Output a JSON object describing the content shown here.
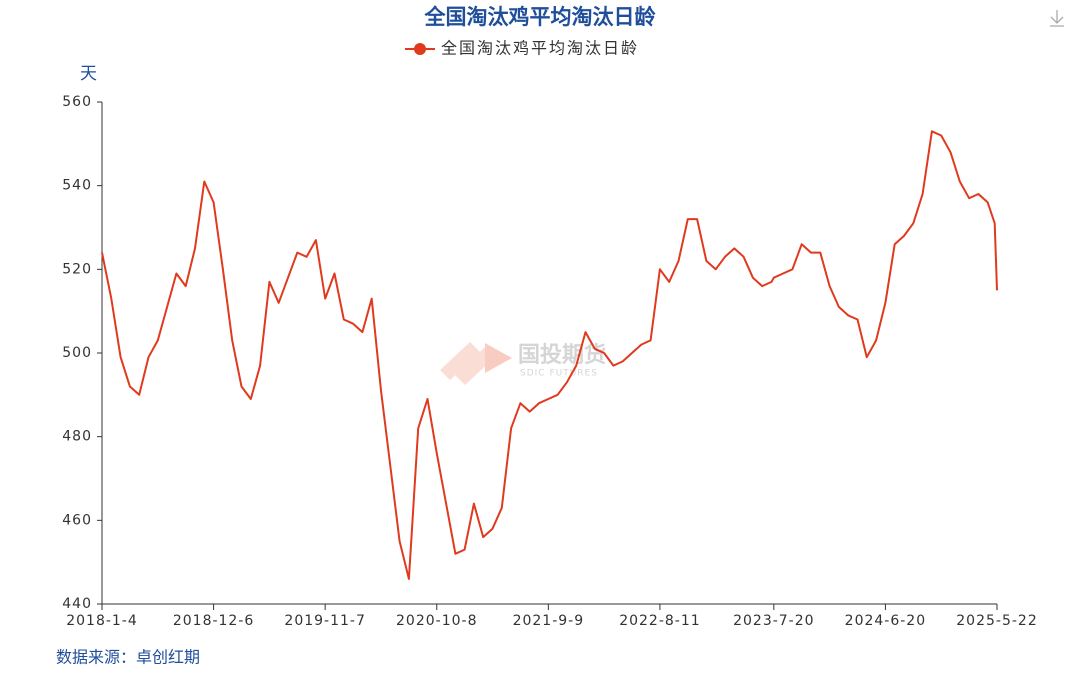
{
  "chart_data": {
    "type": "line",
    "title": "全国淘汰鸡平均淘汰日龄",
    "y_unit": "天",
    "source": "数据来源：卓创红期",
    "watermark": {
      "name": "国投期货",
      "sub": "SDIC FUTURES"
    },
    "series": [
      {
        "name": "全国淘汰鸡平均淘汰日龄",
        "color": "#e03a1e"
      }
    ],
    "x": [
      "2018-01-04",
      "2018-02-01",
      "2018-03-01",
      "2018-03-29",
      "2018-04-26",
      "2018-05-24",
      "2018-06-21",
      "2018-07-19",
      "2018-08-16",
      "2018-09-13",
      "2018-10-11",
      "2018-11-08",
      "2018-12-06",
      "2019-01-03",
      "2019-01-31",
      "2019-02-28",
      "2019-03-28",
      "2019-04-25",
      "2019-05-23",
      "2019-06-20",
      "2019-07-18",
      "2019-08-15",
      "2019-09-12",
      "2019-10-10",
      "2019-11-07",
      "2019-12-05",
      "2020-01-02",
      "2020-01-30",
      "2020-02-27",
      "2020-03-26",
      "2020-04-23",
      "2020-05-21",
      "2020-06-18",
      "2020-07-16",
      "2020-08-13",
      "2020-09-10",
      "2020-10-08",
      "2020-11-05",
      "2020-12-03",
      "2020-12-31",
      "2021-01-28",
      "2021-02-25",
      "2021-03-25",
      "2021-04-22",
      "2021-05-20",
      "2021-06-17",
      "2021-07-15",
      "2021-08-12",
      "2021-09-09",
      "2021-10-07",
      "2021-11-04",
      "2021-12-02",
      "2021-12-30",
      "2022-01-27",
      "2022-02-24",
      "2022-03-24",
      "2022-04-21",
      "2022-05-19",
      "2022-06-16",
      "2022-07-14",
      "2022-08-11",
      "2022-09-08",
      "2022-10-06",
      "2022-11-03",
      "2022-12-01",
      "2022-12-29",
      "2023-01-26",
      "2023-02-23",
      "2023-03-23",
      "2023-04-20",
      "2023-05-18",
      "2023-06-15",
      "2023-07-13",
      "2023-07-20",
      "2023-08-17",
      "2023-09-14",
      "2023-10-12",
      "2023-11-09",
      "2023-12-07",
      "2024-01-04",
      "2024-02-01",
      "2024-02-29",
      "2024-03-28",
      "2024-04-25",
      "2024-05-23",
      "2024-06-20",
      "2024-07-18",
      "2024-08-15",
      "2024-09-12",
      "2024-10-10",
      "2024-11-07",
      "2024-12-05",
      "2025-01-02",
      "2025-01-30",
      "2025-02-27",
      "2025-03-27",
      "2025-04-24",
      "2025-05-15",
      "2025-05-22"
    ],
    "values": [
      524,
      513,
      499,
      492,
      490,
      499,
      503,
      511,
      519,
      516,
      525,
      541,
      536,
      520,
      503,
      492,
      489,
      497,
      517,
      512,
      518,
      524,
      523,
      527,
      513,
      519,
      508,
      507,
      505,
      513,
      491,
      473,
      455,
      446,
      482,
      489,
      476,
      464,
      452,
      453,
      464,
      456,
      458,
      463,
      482,
      488,
      486,
      488,
      489,
      490,
      493,
      497,
      505,
      501,
      500,
      497,
      498,
      500,
      502,
      503,
      520,
      517,
      522,
      532,
      532,
      522,
      520,
      523,
      525,
      523,
      518,
      516,
      517,
      518,
      519,
      520,
      526,
      524,
      524,
      516,
      511,
      509,
      508,
      499,
      503,
      512,
      526,
      528,
      531,
      538,
      553,
      552,
      548,
      541,
      537,
      538,
      536,
      531,
      515
    ],
    "xlim": [
      "2018-01-04",
      "2025-05-22"
    ],
    "xticks": [
      {
        "value": "2018-01-04",
        "label": "2018-1-4"
      },
      {
        "value": "2018-12-06",
        "label": "2018-12-6"
      },
      {
        "value": "2019-11-07",
        "label": "2019-11-7"
      },
      {
        "value": "2020-10-08",
        "label": "2020-10-8"
      },
      {
        "value": "2021-09-09",
        "label": "2021-9-9"
      },
      {
        "value": "2022-08-11",
        "label": "2022-8-11"
      },
      {
        "value": "2023-07-20",
        "label": "2023-7-20"
      },
      {
        "value": "2024-06-20",
        "label": "2024-6-20"
      },
      {
        "value": "2025-05-22",
        "label": "2025-5-22"
      }
    ],
    "ylim": [
      440,
      560
    ],
    "yticks": [
      440,
      460,
      480,
      500,
      520,
      540,
      560
    ]
  }
}
